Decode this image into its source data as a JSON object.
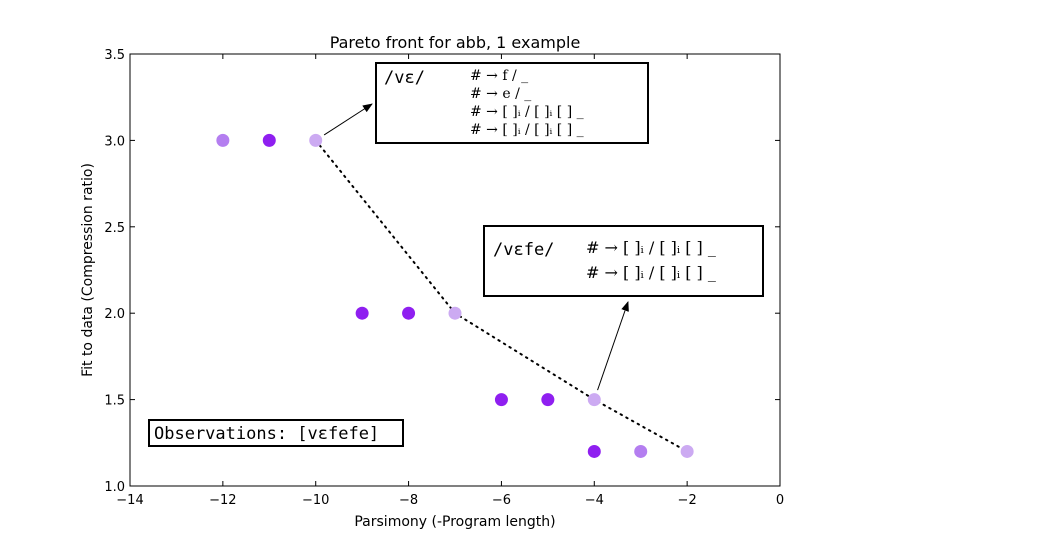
{
  "chart_data": {
    "type": "scatter",
    "title": "Pareto front for abb, 1 example",
    "xlabel": "Parsimony (-Program length)",
    "ylabel": "Fit to data (Compression ratio)",
    "xlim": [
      -14,
      0
    ],
    "ylim": [
      1.0,
      3.5
    ],
    "xticks": [
      "−14",
      "−12",
      "−10",
      "−8",
      "−6",
      "−4",
      "−2",
      "0"
    ],
    "yticks": [
      "1.0",
      "1.5",
      "2.0",
      "2.5",
      "3.0",
      "3.5"
    ],
    "grid": false,
    "colors": {
      "solid": "#8f1ff0",
      "medium": "#b47ef0",
      "light": "#ccaaf2",
      "frontier_line": "#000000"
    },
    "points": [
      {
        "x": -12,
        "y": 3.0,
        "shade": "medium"
      },
      {
        "x": -11,
        "y": 3.0,
        "shade": "solid"
      },
      {
        "x": -10,
        "y": 3.0,
        "shade": "light"
      },
      {
        "x": -9,
        "y": 2.0,
        "shade": "solid"
      },
      {
        "x": -8,
        "y": 2.0,
        "shade": "solid"
      },
      {
        "x": -7,
        "y": 2.0,
        "shade": "light"
      },
      {
        "x": -6,
        "y": 1.5,
        "shade": "solid"
      },
      {
        "x": -5,
        "y": 1.5,
        "shade": "solid"
      },
      {
        "x": -4,
        "y": 1.5,
        "shade": "light"
      },
      {
        "x": -4,
        "y": 1.2,
        "shade": "solid"
      },
      {
        "x": -3,
        "y": 1.2,
        "shade": "medium"
      },
      {
        "x": -2,
        "y": 1.2,
        "shade": "light"
      }
    ],
    "pareto_front": [
      {
        "x": -10,
        "y": 3.0
      },
      {
        "x": -7,
        "y": 2.0
      },
      {
        "x": -4,
        "y": 1.5
      },
      {
        "x": -2,
        "y": 1.2
      }
    ],
    "annotations": [
      {
        "id": "ann1",
        "target": {
          "x": -10,
          "y": 3.0
        },
        "word": "/vɛ/",
        "rules": [
          "# → f / _",
          "# → e / _",
          "# → [ ]ᵢ / [ ]ᵢ [ ] _",
          "# → [ ]ᵢ / [ ]ᵢ [ ] _"
        ]
      },
      {
        "id": "ann2",
        "target": {
          "x": -4,
          "y": 1.5
        },
        "word": "/vɛfe/",
        "rules": [
          "# → [ ]ᵢ / [ ]ᵢ [ ] _",
          "# → [ ]ᵢ / [ ]ᵢ [ ] _"
        ]
      }
    ],
    "observations": "Observations: [vɛfefe]"
  }
}
